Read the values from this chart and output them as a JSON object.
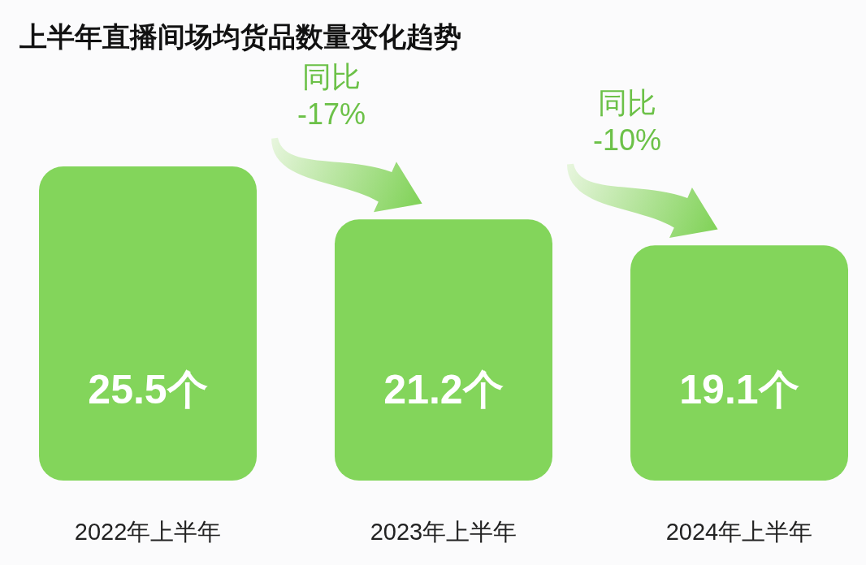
{
  "chart_data": {
    "type": "bar",
    "title": "上半年直播间场均货品数量变化趋势",
    "categories": [
      "2022年上半年",
      "2023年上半年",
      "2024年上半年"
    ],
    "values": [
      25.5,
      21.2,
      19.1
    ],
    "value_labels": [
      "25.5个",
      "21.2个",
      "19.1个"
    ],
    "color": "#83d55b",
    "annotations": [
      "同比 -17%",
      "同比 -10%"
    ]
  }
}
